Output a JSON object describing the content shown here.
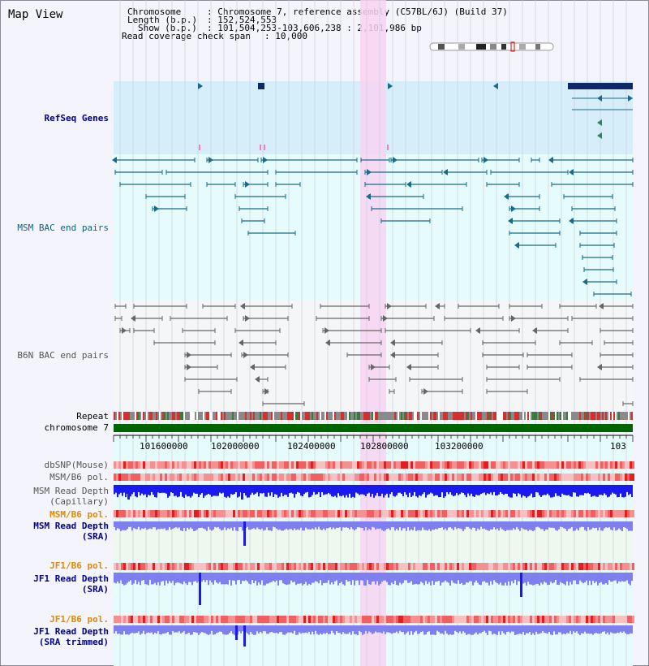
{
  "title": "Map View",
  "info": {
    "chromosome_key": "Chromosome",
    "chromosome_value": "Chromosome 7, reference assembly (C57BL/6J) (Build 37)",
    "length_key": "Length (b.p.)",
    "length_value": "152,524,553",
    "show_key": "Show (b.p.)",
    "show_value": "101,504,253-103,606,238 : 2,101,986 bp",
    "coverage_key": "Read coverage check span",
    "coverage_value": "10,000"
  },
  "tracks": {
    "refseq": "RefSeq Genes",
    "msm_bac": "MSM BAC end pairs",
    "b6n_bac": "B6N BAC end pairs",
    "repeat": "Repeat",
    "chromosome": "chromosome 7",
    "dbsnp": "dbSNP(Mouse)",
    "msm_b6_pol_1": "MSM/B6 pol.",
    "msm_depth_cap_1": "MSM Read Depth",
    "msm_depth_cap_2": "(Capillary)",
    "msm_b6_pol_2": "MSM/B6 pol.",
    "msm_depth_sra_1": "MSM Read Depth",
    "msm_depth_sra_2": "(SRA)",
    "jf1_b6_pol_1": "JF1/B6 pol.",
    "jf1_depth_sra_1": "JF1 Read Depth",
    "jf1_depth_sra_2": "(SRA)",
    "jf1_b6_pol_2": "JF1/B6 pol.",
    "jf1_depth_trim_1": "JF1 Read Depth",
    "jf1_depth_trim_2": "(SRA trimmed)"
  },
  "ruler": {
    "ticks": [
      "101600000",
      "102000000",
      "102400000",
      "102800000",
      "103200000",
      "103"
    ]
  },
  "colors": {
    "panel_bg": "#e6fbfb",
    "refseq_bg": "#d6eefa",
    "highlight": "#f7d4f2",
    "gene_dark": "#0d2a66",
    "bac_teal": "#1b6b86",
    "bac_gray": "#666666",
    "depth_blue": "#1a1aee",
    "depth_light": "#7f7fef",
    "chrom_green": "#006400"
  }
}
